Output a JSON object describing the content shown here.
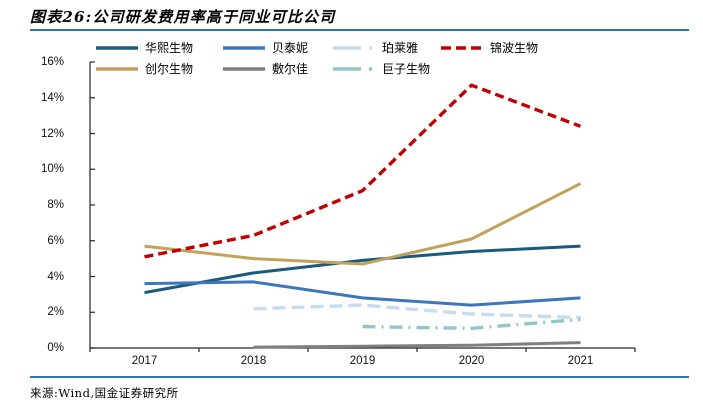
{
  "page": {
    "title": "图表26:公司研发费用率高于同业可比公司",
    "source": "来源:Wind,国金证券研究所",
    "rule_color": "#2E75B6",
    "axis_color": "#262626"
  },
  "chart_data": {
    "type": "line",
    "title": "公司研发费用率高于同业可比公司",
    "x": [
      2017,
      2018,
      2019,
      2020,
      2021
    ],
    "x_tick_labels": [
      "2017",
      "2018",
      "2019",
      "2020",
      "2021"
    ],
    "y_tick_labels": [
      "0%",
      "2%",
      "4%",
      "6%",
      "8%",
      "10%",
      "12%",
      "14%",
      "16%"
    ],
    "ylim": [
      0,
      16
    ],
    "y_tick_step": 2,
    "y_unit": "%",
    "grid": false,
    "legend_position": "top",
    "series": [
      {
        "name": "华熙生物",
        "color": "#1A5A7A",
        "style": "solid",
        "values": [
          3.1,
          4.2,
          4.9,
          5.4,
          5.7
        ]
      },
      {
        "name": "贝泰妮",
        "color": "#3D76BE",
        "style": "solid",
        "values": [
          3.6,
          3.7,
          2.8,
          2.4,
          2.8
        ]
      },
      {
        "name": "珀莱雅",
        "color": "#C7DCEF",
        "style": "long-dash",
        "values": [
          null,
          2.2,
          2.4,
          1.9,
          1.7
        ]
      },
      {
        "name": "锦波生物",
        "color": "#C00000",
        "style": "dashed",
        "values": [
          5.1,
          6.3,
          8.8,
          14.7,
          12.4
        ]
      },
      {
        "name": "创尔生物",
        "color": "#C2A25B",
        "style": "solid",
        "values": [
          5.7,
          5.0,
          4.7,
          6.1,
          9.2
        ]
      },
      {
        "name": "敷尔佳",
        "color": "#7F7F7F",
        "style": "solid",
        "values": [
          null,
          0.05,
          0.1,
          0.15,
          0.3
        ]
      },
      {
        "name": "巨子生物",
        "color": "#92C6CB",
        "style": "dash-dot",
        "values": [
          null,
          null,
          1.2,
          1.1,
          1.6
        ]
      }
    ]
  }
}
